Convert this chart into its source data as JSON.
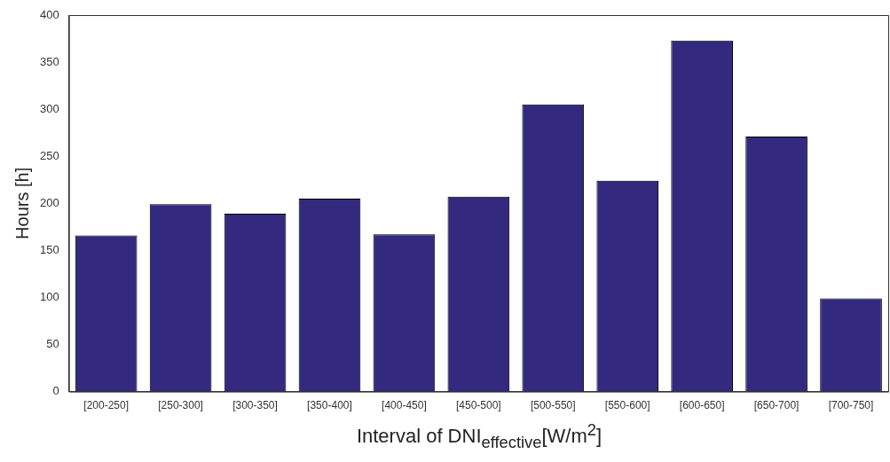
{
  "chart_data": {
    "type": "bar",
    "xlabel": "Interval of DNI$_{effective}$[W/m$^{2}$]",
    "ylabel": "Hours [h]",
    "categories": [
      "[200-250]",
      "[250-300]",
      "[300-350]",
      "[350-400]",
      "[400-450]",
      "[450-500]",
      "[500-550]",
      "[550-600]",
      "[600-650]",
      "[650-700]",
      "[700-750]"
    ],
    "values": [
      166,
      199,
      189,
      205,
      167,
      207,
      305,
      224,
      373,
      271,
      99
    ],
    "color": "#332a80",
    "ylim": [
      0,
      400
    ],
    "yticks": [
      0,
      50,
      100,
      150,
      200,
      250,
      300,
      350,
      400
    ],
    "grid": false,
    "legend": false
  }
}
